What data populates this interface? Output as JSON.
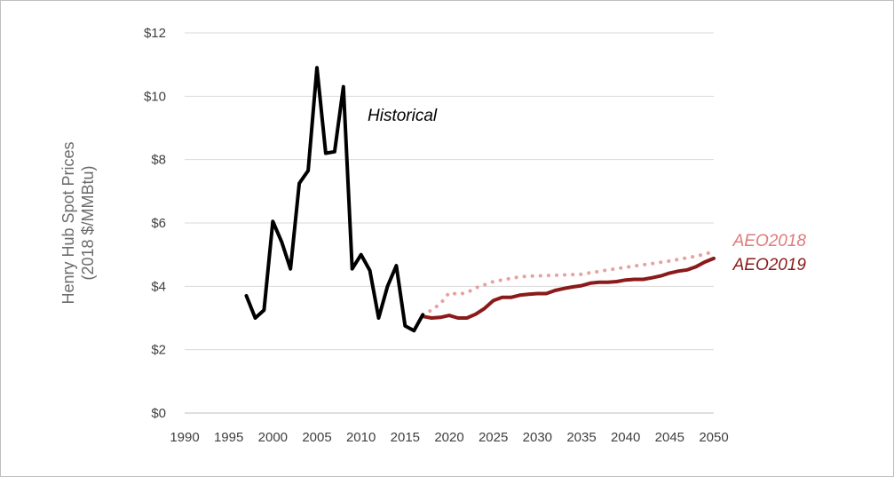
{
  "chart_data": {
    "type": "line",
    "ylabel_line1": "Henry Hub Spot Prices",
    "ylabel_line2": "(2018 $/MMBtu)",
    "xlim": [
      1990,
      2050
    ],
    "ylim": [
      0,
      12
    ],
    "x_ticks": [
      1990,
      1995,
      2000,
      2005,
      2010,
      2015,
      2020,
      2025,
      2030,
      2035,
      2040,
      2045,
      2050
    ],
    "y_ticks": [
      0,
      2,
      4,
      6,
      8,
      10,
      12
    ],
    "y_tick_labels": [
      "$0",
      "$2",
      "$4",
      "$6",
      "$8",
      "$10",
      "$12"
    ],
    "grid": "horizontal",
    "series": [
      {
        "name": "Historical",
        "color": "#000000",
        "style": "solid",
        "x": [
          1997,
          1998,
          1999,
          2000,
          2001,
          2002,
          2003,
          2004,
          2005,
          2006,
          2007,
          2008,
          2009,
          2010,
          2011,
          2012,
          2013,
          2014,
          2015,
          2016,
          2017
        ],
        "y": [
          3.7,
          3.0,
          3.25,
          6.05,
          5.4,
          4.55,
          7.25,
          7.65,
          10.9,
          8.2,
          8.25,
          10.3,
          4.55,
          5.0,
          4.5,
          3.0,
          4.0,
          4.65,
          2.75,
          2.6,
          3.1
        ]
      },
      {
        "name": "AEO2018",
        "color": "#e8a0a0",
        "style": "dotted",
        "x": [
          2017,
          2018,
          2019,
          2020,
          2021,
          2022,
          2023,
          2024,
          2025,
          2026,
          2027,
          2028,
          2029,
          2030,
          2031,
          2032,
          2033,
          2034,
          2035,
          2036,
          2037,
          2038,
          2039,
          2040,
          2041,
          2042,
          2043,
          2044,
          2045,
          2046,
          2047,
          2048,
          2049,
          2050
        ],
        "y": [
          3.1,
          3.25,
          3.45,
          3.8,
          3.75,
          3.8,
          3.95,
          4.05,
          4.15,
          4.2,
          4.25,
          4.3,
          4.32,
          4.33,
          4.34,
          4.35,
          4.36,
          4.37,
          4.38,
          4.43,
          4.47,
          4.52,
          4.56,
          4.6,
          4.64,
          4.68,
          4.72,
          4.76,
          4.8,
          4.85,
          4.9,
          4.95,
          5.02,
          5.1
        ]
      },
      {
        "name": "AEO2019",
        "color": "#8b1a1a",
        "style": "solid",
        "x": [
          2017,
          2018,
          2019,
          2020,
          2021,
          2022,
          2023,
          2024,
          2025,
          2026,
          2027,
          2028,
          2029,
          2030,
          2031,
          2032,
          2033,
          2034,
          2035,
          2036,
          2037,
          2038,
          2039,
          2040,
          2041,
          2042,
          2043,
          2044,
          2045,
          2046,
          2047,
          2048,
          2049,
          2050
        ],
        "y": [
          3.05,
          3.0,
          3.02,
          3.08,
          3.0,
          3.0,
          3.12,
          3.3,
          3.55,
          3.65,
          3.65,
          3.72,
          3.75,
          3.77,
          3.77,
          3.87,
          3.93,
          3.98,
          4.02,
          4.1,
          4.13,
          4.13,
          4.15,
          4.2,
          4.22,
          4.22,
          4.27,
          4.33,
          4.42,
          4.48,
          4.52,
          4.62,
          4.77,
          4.88
        ]
      }
    ],
    "annotations": [
      {
        "text": "Historical",
        "color": "#000000"
      },
      {
        "text": "AEO2018",
        "color": "#e07a7a"
      },
      {
        "text": "AEO2019",
        "color": "#8b1a1a"
      }
    ]
  }
}
